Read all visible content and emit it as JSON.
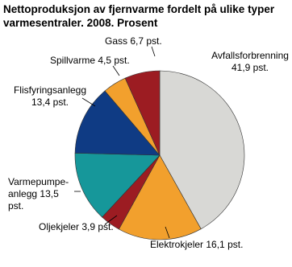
{
  "chart_data": {
    "type": "pie",
    "title": "Nettoproduksjon av fjernvarme fordelt på ulike typer varmesentraler. 2008. Prosent",
    "categories": [
      "Avfallsforbrenning",
      "Elektrokjeler",
      "Oljekjeler",
      "Varmepumpe-anlegg",
      "Flisfyringsanlegg",
      "Spillvarme",
      "Gass"
    ],
    "values": [
      41.9,
      16.1,
      3.9,
      13.5,
      13.4,
      4.5,
      6.7
    ],
    "value_labels": [
      "41,9 pst.",
      "16,1 pst.",
      "3,9 pst.",
      "13,5 pst.",
      "13,4 pst.",
      "4,5 pst.",
      "6,7 pst."
    ],
    "colors": [
      "#d8d8d5",
      "#f2a02d",
      "#9c1c22",
      "#16979a",
      "#0f3b84",
      "#f2a02d",
      "#9c1c22"
    ]
  }
}
